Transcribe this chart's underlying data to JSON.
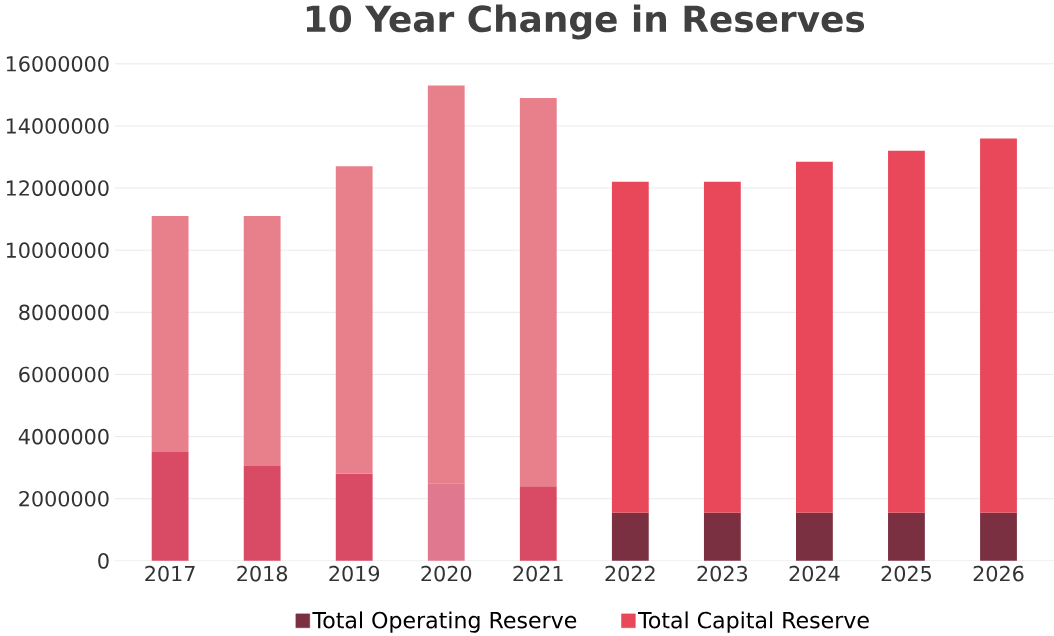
{
  "chart_data": {
    "type": "bar",
    "stacked": true,
    "title": "10 Year Change in Reserves",
    "categories": [
      "2017",
      "2018",
      "2019",
      "2020",
      "2021",
      "2022",
      "2023",
      "2024",
      "2025",
      "2026"
    ],
    "series": [
      {
        "name": "Total Operating Reserve",
        "color": "#7a3040",
        "colors": [
          "#d94a64",
          "#d94a64",
          "#d94a64",
          "#e07890",
          "#d94a64",
          "#7a3040",
          "#7a3040",
          "#7a3040",
          "#7a3040",
          "#7a3040"
        ],
        "values": [
          3500000,
          3050000,
          2800000,
          2500000,
          2400000,
          1550000,
          1550000,
          1550000,
          1550000,
          1550000
        ]
      },
      {
        "name": "Total Capital Reserve",
        "color": "#e8485a",
        "colors": [
          "#e8808c",
          "#e8808c",
          "#e8808c",
          "#e8808c",
          "#e8808c",
          "#e8485a",
          "#e8485a",
          "#e8485a",
          "#e8485a",
          "#e8485a"
        ],
        "values": [
          7600000,
          8050000,
          9900000,
          12800000,
          12500000,
          10650000,
          10650000,
          11300000,
          11650000,
          12050000
        ]
      }
    ],
    "ylim": [
      0,
      16000000
    ],
    "yticks": [
      0,
      2000000,
      4000000,
      6000000,
      8000000,
      10000000,
      12000000,
      14000000,
      16000000
    ],
    "grid": "y",
    "legend": "bottom"
  }
}
